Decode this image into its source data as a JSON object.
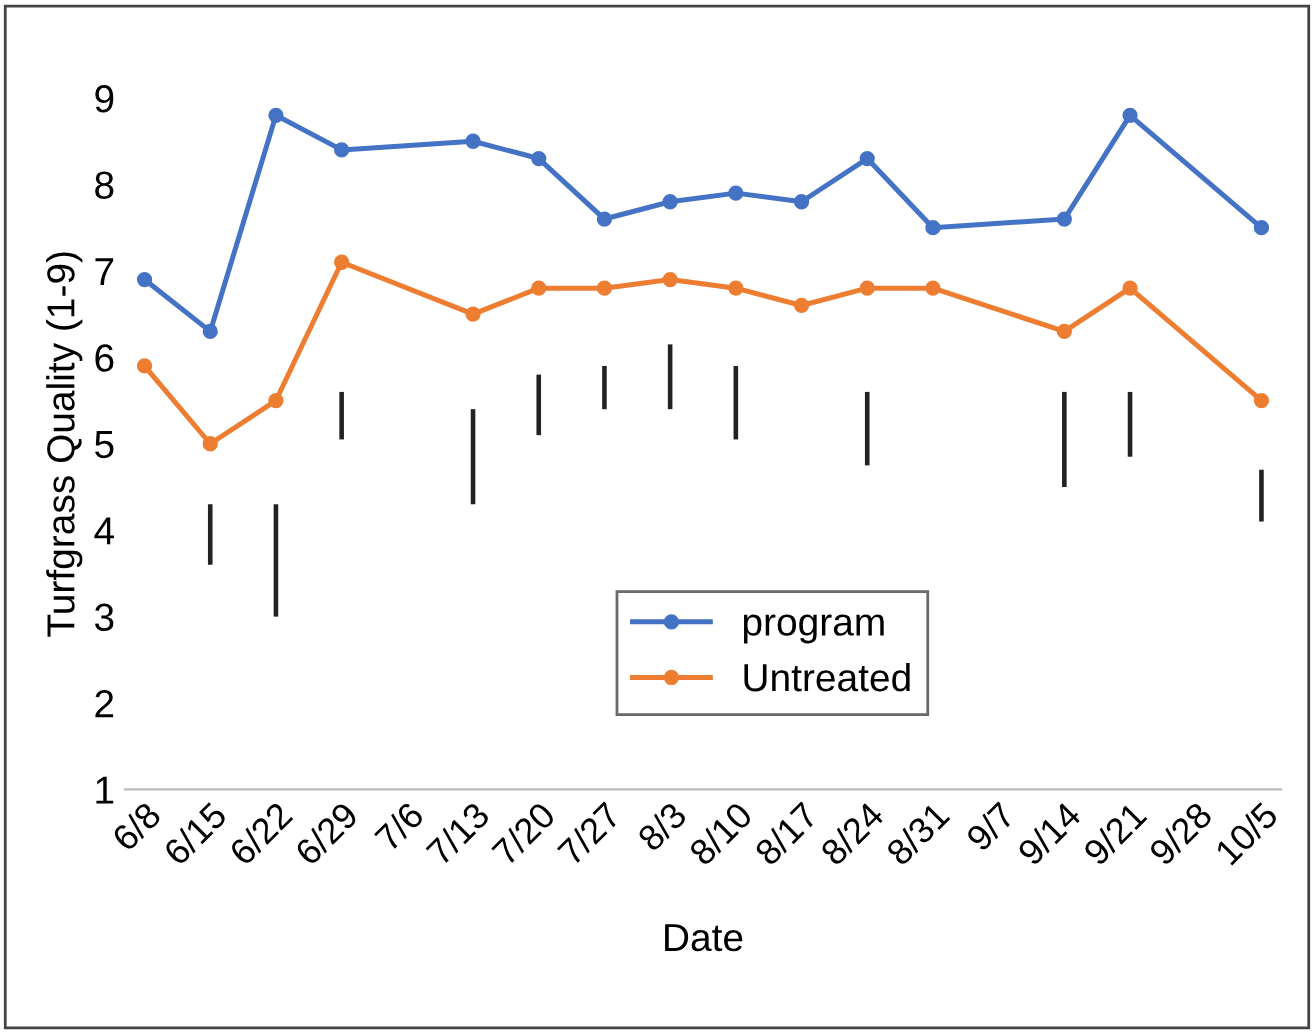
{
  "chart_data": {
    "type": "line",
    "xlabel": "Date",
    "ylabel": "Turfgrass Quality (1-9)",
    "categories": [
      "6/8",
      "6/15",
      "6/22",
      "6/29",
      "7/6",
      "7/13",
      "7/20",
      "7/27",
      "8/3",
      "8/10",
      "8/17",
      "8/24",
      "8/31",
      "9/7",
      "9/14",
      "9/21",
      "9/28",
      "10/5"
    ],
    "series": [
      {
        "name": "program",
        "color": "#4472c4",
        "values": [
          6.9,
          6.3,
          8.8,
          8.4,
          null,
          8.5,
          8.3,
          7.6,
          7.8,
          7.9,
          7.8,
          8.3,
          7.5,
          null,
          7.6,
          8.8,
          null,
          7.5
        ]
      },
      {
        "name": "Untreated",
        "color": "#ed7d31",
        "values": [
          5.9,
          5.0,
          5.5,
          7.1,
          null,
          6.5,
          6.8,
          6.8,
          6.9,
          6.8,
          6.6,
          6.8,
          6.8,
          null,
          6.3,
          6.8,
          null,
          5.5
        ]
      },
      {
        "type": "bar",
        "color": "#222222",
        "base": [
          null,
          3.6,
          3.0,
          5.05,
          null,
          4.3,
          5.1,
          5.4,
          5.4,
          5.05,
          null,
          4.75,
          null,
          null,
          4.5,
          4.85,
          null,
          4.1
        ],
        "values": [
          null,
          0.7,
          1.3,
          0.55,
          null,
          1.1,
          0.7,
          0.5,
          0.75,
          0.85,
          null,
          0.85,
          null,
          null,
          1.1,
          0.75,
          null,
          0.6
        ]
      }
    ],
    "ylim": [
      1,
      9
    ],
    "yticks": [
      1,
      2,
      3,
      4,
      5,
      6,
      7,
      8,
      9
    ],
    "grid": false,
    "legend": "bottom",
    "marker": "circle",
    "line_style": "solid"
  }
}
